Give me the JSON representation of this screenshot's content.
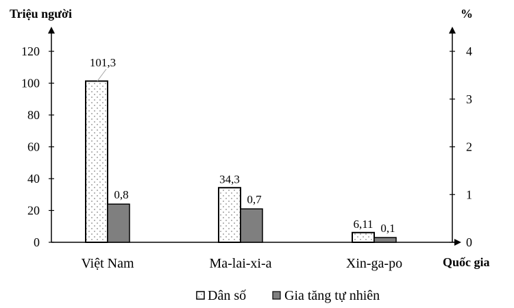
{
  "chart_data": {
    "type": "bar",
    "categories": [
      "Việt Nam",
      "Ma-lai-xi-a",
      "Xin-ga-po"
    ],
    "xlabel": "Quốc gia",
    "y_left": {
      "label": "Triệu người",
      "range": [
        0,
        120
      ],
      "ticks": [
        0,
        20,
        40,
        60,
        80,
        100,
        120
      ]
    },
    "y_right": {
      "label": "%",
      "range": [
        0,
        4
      ],
      "ticks": [
        0,
        1,
        2,
        3,
        4
      ]
    },
    "series": [
      {
        "name": "Dân số",
        "axis": "left",
        "values": [
          101.3,
          34.3,
          6.11
        ],
        "labels": [
          "101,3",
          "34,3",
          "6,11"
        ],
        "fill": "dotted-white"
      },
      {
        "name": "Gia tăng tự nhiên",
        "axis": "right",
        "values": [
          0.8,
          0.7,
          0.1
        ],
        "labels": [
          "0,8",
          "0,7",
          "0,1"
        ],
        "color": "#7f7f7f"
      }
    ],
    "legend": "bottom",
    "grid": false
  }
}
